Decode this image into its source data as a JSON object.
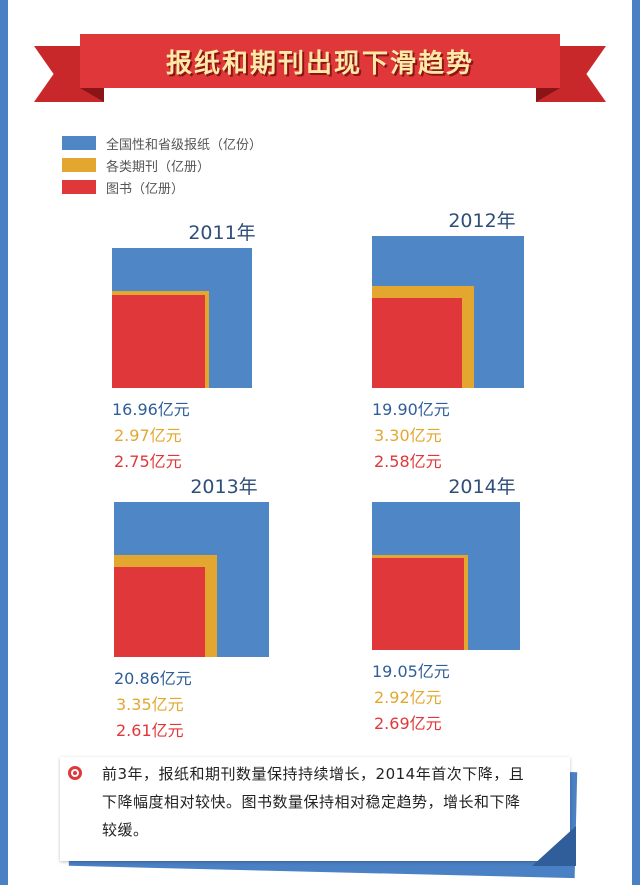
{
  "title": "报纸和期刊出现下滑趋势",
  "colors": {
    "newspaper": "#4f86c6",
    "periodical": "#e3a730",
    "book": "#e0383a"
  },
  "legend": [
    {
      "label": "全国性和省级报纸（亿份）",
      "color": "#4f86c6"
    },
    {
      "label": "各类期刊（亿册）",
      "color": "#e3a730"
    },
    {
      "label": "图书（亿册）",
      "color": "#e0383a"
    }
  ],
  "chart_data": {
    "type": "nested-square",
    "series": [
      "全国性和省级报纸（亿份）",
      "各类期刊（亿册）",
      "图书（亿册）"
    ],
    "panels": [
      {
        "year": "2011年",
        "values": [
          16.96,
          2.97,
          2.75
        ],
        "labels": [
          "16.96亿元",
          "2.97亿元",
          "2.75亿元"
        ]
      },
      {
        "year": "2012年",
        "values": [
          19.9,
          3.3,
          2.58
        ],
        "labels": [
          "19.90亿元",
          "3.30亿元",
          "2.58亿元"
        ]
      },
      {
        "year": "2013年",
        "values": [
          20.86,
          3.35,
          2.61
        ],
        "labels": [
          "20.86亿元",
          "3.35亿元",
          "2.61亿元"
        ]
      },
      {
        "year": "2014年",
        "values": [
          19.05,
          2.92,
          2.69
        ],
        "labels": [
          "19.05亿元",
          "2.92亿元",
          "2.69亿元"
        ]
      }
    ]
  },
  "note": {
    "text": "前3年，报纸和期刊数量保持持续增长，2014年首次下降，且下降幅度相对较快。图书数量保持相对稳定趋势，增长和下降较缓。"
  }
}
